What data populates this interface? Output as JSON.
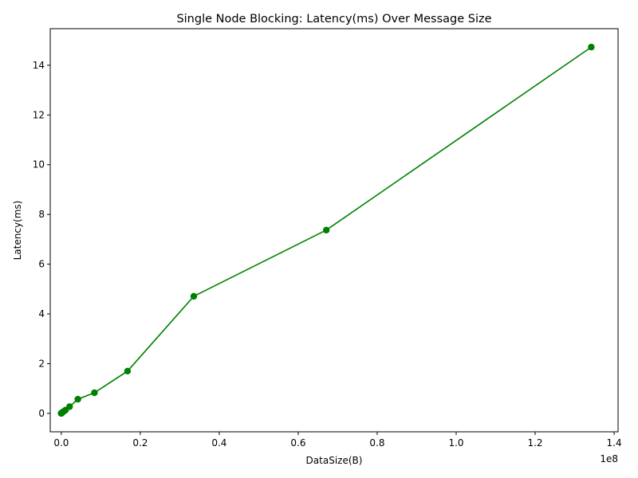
{
  "chart_data": {
    "type": "line",
    "title": "Single Node Blocking: Latency(ms) Over Message Size",
    "xlabel": "DataSize(B)",
    "ylabel": "Latency(ms)",
    "x_offset_label": "1e8",
    "x_scale": 100000000,
    "xlim": [
      -2800000,
      141000000
    ],
    "ylim": [
      -0.74,
      15.47
    ],
    "x_ticks": [
      0.0,
      0.2,
      0.4,
      0.6,
      0.8,
      1.0,
      1.2,
      1.4
    ],
    "x_tick_labels": [
      "0.0",
      "0.2",
      "0.4",
      "0.6",
      "0.8",
      "1.0",
      "1.2",
      "1.4"
    ],
    "y_ticks": [
      0,
      2,
      4,
      6,
      8,
      10,
      12,
      14
    ],
    "y_tick_labels": [
      "0",
      "2",
      "4",
      "6",
      "8",
      "10",
      "12",
      "14"
    ],
    "grid": false,
    "series": [
      {
        "color": "#008000",
        "marker": "circle",
        "x": [
          64,
          128,
          256,
          512,
          1024,
          2048,
          4096,
          8192,
          16384,
          32768,
          65536,
          131072,
          262144,
          524288,
          1048576,
          2097152,
          4194304,
          8388608,
          16777216,
          33554432,
          67108864,
          134217728
        ],
        "y": [
          0.005,
          0.005,
          0.005,
          0.005,
          0.005,
          0.006,
          0.006,
          0.007,
          0.008,
          0.01,
          0.014,
          0.02,
          0.035,
          0.07,
          0.13,
          0.27,
          0.57,
          0.83,
          1.7,
          4.71,
          7.37,
          14.73
        ]
      }
    ]
  }
}
